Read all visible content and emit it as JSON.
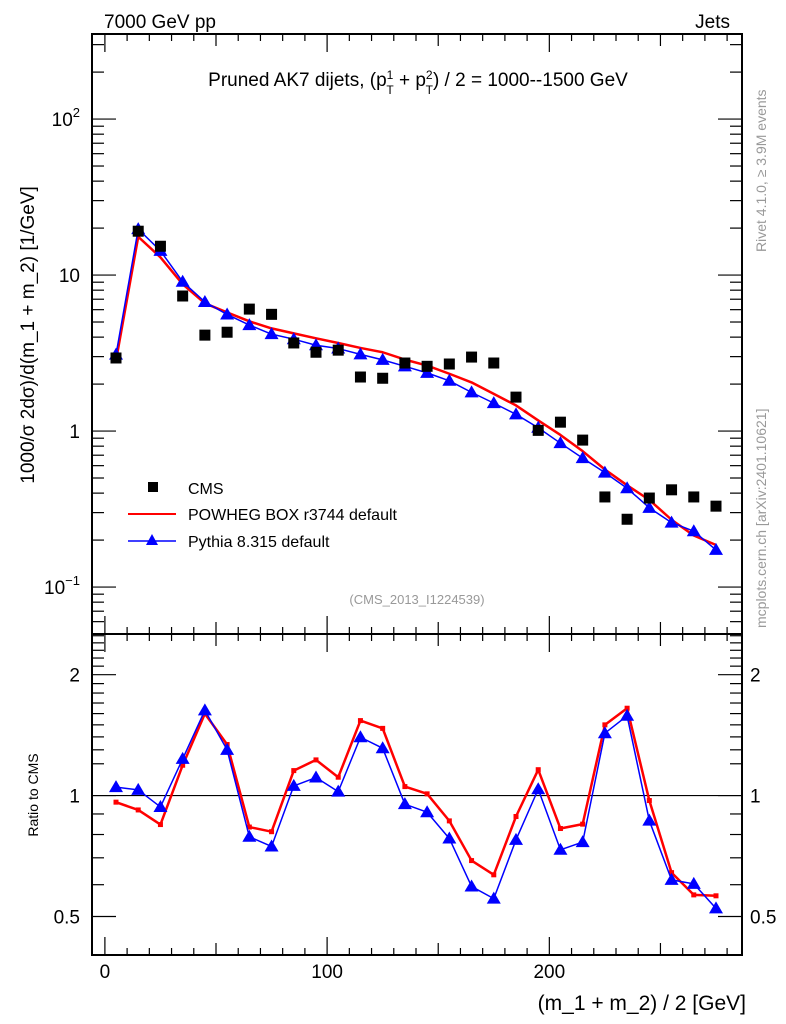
{
  "header": {
    "left": "7000 GeV pp",
    "right": "Jets"
  },
  "side_labels": {
    "rivet": "Rivet 4.1.0, ≥ 3.9M events",
    "mcplots": "mcplots.cern.ch [arXiv:2401.10621]"
  },
  "chart_data": [
    {
      "type": "scatter",
      "panel": "main",
      "title": "Pruned AK7 dijets, (p_T^1 + p_T^2) / 2 = 1000--1500 GeV",
      "title_parts": {
        "prefix": "Pruned AK7 dijets, (p",
        "sup1": "1",
        "sub1": "T",
        "mid": " + p",
        "sup2": "2",
        "sub2": "T",
        "suffix": ") / 2 = 1000--1500 GeV"
      },
      "ylabel": "1000/σ  2dσ)/d(m_1 + m_2) [1/GeV]",
      "xlabel": "",
      "yscale": "log",
      "ylim": [
        0.05,
        351
      ],
      "xlim": [
        -5.8,
        286.7
      ],
      "yticks": [
        {
          "value": 0.1,
          "label_base": "10",
          "label_exp": "−1"
        },
        {
          "value": 1,
          "label_base": "1",
          "label_exp": ""
        },
        {
          "value": 10,
          "label_base": "10",
          "label_exp": ""
        },
        {
          "value": 100,
          "label_base": "10",
          "label_exp": "2"
        }
      ],
      "watermark": "(CMS_2013_I1224539)",
      "legend_position": "bottom-left",
      "x": [
        5,
        15,
        25,
        35,
        45,
        55,
        65,
        75,
        85,
        95,
        105,
        115,
        125,
        135,
        145,
        155,
        165,
        175,
        185,
        195,
        205,
        215,
        225,
        235,
        245,
        255,
        265,
        275
      ],
      "series": [
        {
          "name": "CMS",
          "style": "markers-square",
          "color": "#000000",
          "values": [
            2.94,
            19.1,
            15.3,
            7.34,
            4.12,
            4.3,
            6.05,
            5.6,
            3.67,
            3.2,
            3.3,
            2.22,
            2.18,
            2.73,
            2.6,
            2.69,
            2.98,
            2.73,
            1.65,
            1.01,
            1.14,
            0.875,
            0.378,
            0.272,
            0.372,
            0.42,
            0.378,
            0.33
          ]
        },
        {
          "name": "POWHEG BOX r3744 default",
          "style": "line",
          "color": "#ff0000",
          "values": [
            2.83,
            17.6,
            13.0,
            8.74,
            6.59,
            5.76,
            5.05,
            4.55,
            4.23,
            3.93,
            3.67,
            3.41,
            3.2,
            2.87,
            2.63,
            2.33,
            2.05,
            1.73,
            1.46,
            1.17,
            0.944,
            0.743,
            0.567,
            0.449,
            0.362,
            0.27,
            0.214,
            0.186
          ]
        },
        {
          "name": "Pythia 8.315 default",
          "style": "line-triangles",
          "color": "#0000ff",
          "values": [
            3.09,
            19.7,
            14.3,
            9.06,
            6.72,
            5.59,
            4.78,
            4.18,
            3.88,
            3.55,
            3.38,
            3.1,
            2.86,
            2.6,
            2.36,
            2.1,
            1.77,
            1.51,
            1.28,
            1.05,
            0.836,
            0.67,
            0.541,
            0.43,
            0.322,
            0.259,
            0.228,
            0.173
          ]
        }
      ]
    },
    {
      "type": "line",
      "panel": "ratio",
      "ylabel": "Ratio to CMS",
      "xlabel": "(m_1 + m_2) / 2 [GeV]",
      "yscale": "log",
      "ylim": [
        0.401,
        2.525
      ],
      "xlim": [
        -5.8,
        286.7
      ],
      "yticks": [
        0.5,
        1,
        2
      ],
      "xticks": [
        0,
        100,
        200
      ],
      "reference_line": 1,
      "x": [
        5,
        15,
        25,
        35,
        45,
        55,
        65,
        75,
        85,
        95,
        105,
        115,
        125,
        135,
        145,
        155,
        165,
        175,
        185,
        195,
        205,
        215,
        225,
        235,
        245,
        255,
        265,
        275
      ],
      "series": [
        {
          "name": "POWHEG BOX r3744 default",
          "color": "#ff0000",
          "values": [
            0.963,
            0.921,
            0.847,
            1.19,
            1.6,
            1.34,
            0.835,
            0.813,
            1.154,
            1.227,
            1.111,
            1.537,
            1.47,
            1.053,
            1.01,
            0.865,
            0.689,
            0.635,
            0.887,
            1.16,
            0.828,
            0.849,
            1.5,
            1.65,
            0.972,
            0.643,
            0.566,
            0.563
          ]
        },
        {
          "name": "Pythia 8.315 default",
          "color": "#0000ff",
          "values": [
            1.05,
            1.033,
            0.937,
            1.234,
            1.63,
            1.3,
            0.79,
            0.747,
            1.057,
            1.109,
            1.023,
            1.397,
            1.312,
            0.952,
            0.909,
            0.782,
            0.594,
            0.554,
            0.776,
            1.037,
            0.733,
            0.766,
            1.43,
            1.58,
            0.866,
            0.617,
            0.603,
            0.524
          ]
        }
      ]
    }
  ]
}
